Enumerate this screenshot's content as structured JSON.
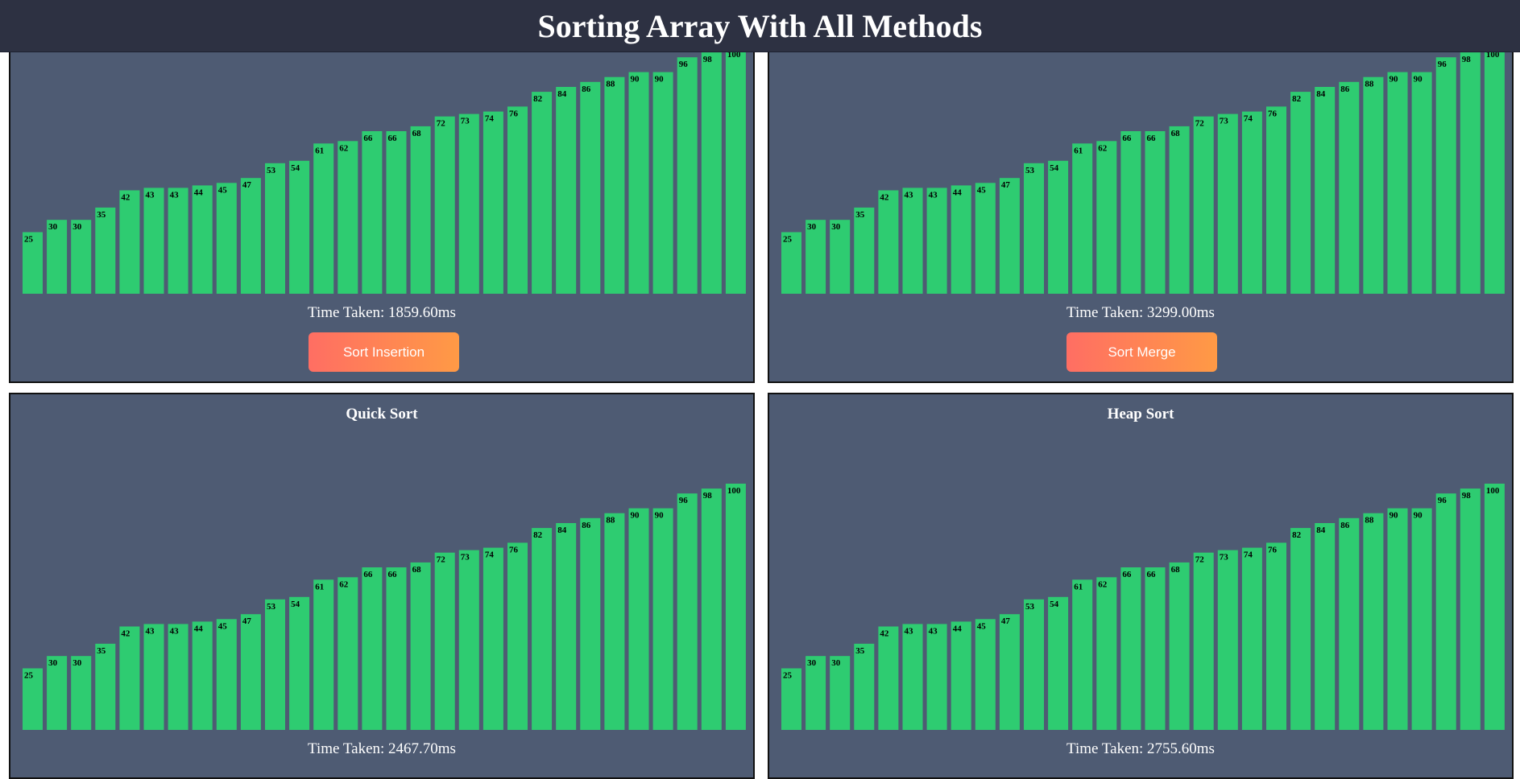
{
  "header": {
    "title": "Sorting Array With All Methods"
  },
  "panels": {
    "insertion": {
      "title": "",
      "time_label": "Time Taken:",
      "time_value": "1859.60ms",
      "button_label": "Sort Insertion"
    },
    "merge": {
      "title": "",
      "time_label": "Time Taken:",
      "time_value": "3299.00ms",
      "button_label": "Sort Merge"
    },
    "quick": {
      "title": "Quick Sort",
      "time_label": "Time Taken:",
      "time_value": "2467.70ms",
      "button_label": ""
    },
    "heap": {
      "title": "Heap Sort",
      "time_label": "Time Taken:",
      "time_value": "2755.60ms",
      "button_label": ""
    }
  },
  "colors": {
    "bar": "#2ecc71",
    "panel_bg": "#4e5b73",
    "header_bg": "#2d3142",
    "button_gradient": [
      "#ff6e63",
      "#ff9a45"
    ]
  },
  "chart_data": [
    {
      "type": "bar",
      "title": "",
      "values": [
        25,
        30,
        30,
        35,
        42,
        43,
        43,
        44,
        45,
        47,
        53,
        54,
        61,
        62,
        66,
        66,
        68,
        72,
        73,
        74,
        76,
        82,
        84,
        86,
        88,
        90,
        90,
        96,
        98,
        100
      ],
      "ylim": [
        0,
        100
      ]
    },
    {
      "type": "bar",
      "title": "",
      "values": [
        25,
        30,
        30,
        35,
        42,
        43,
        43,
        44,
        45,
        47,
        53,
        54,
        61,
        62,
        66,
        66,
        68,
        72,
        73,
        74,
        76,
        82,
        84,
        86,
        88,
        90,
        90,
        96,
        98,
        100
      ],
      "ylim": [
        0,
        100
      ]
    },
    {
      "type": "bar",
      "title": "Quick Sort",
      "values": [
        25,
        30,
        30,
        35,
        42,
        43,
        43,
        44,
        45,
        47,
        53,
        54,
        61,
        62,
        66,
        66,
        68,
        72,
        73,
        74,
        76,
        82,
        84,
        86,
        88,
        90,
        90,
        96,
        98,
        100
      ],
      "ylim": [
        0,
        100
      ]
    },
    {
      "type": "bar",
      "title": "Heap Sort",
      "values": [
        25,
        30,
        30,
        35,
        42,
        43,
        43,
        44,
        45,
        47,
        53,
        54,
        61,
        62,
        66,
        66,
        68,
        72,
        73,
        74,
        76,
        82,
        84,
        86,
        88,
        90,
        90,
        96,
        98,
        100
      ],
      "ylim": [
        0,
        100
      ]
    }
  ]
}
